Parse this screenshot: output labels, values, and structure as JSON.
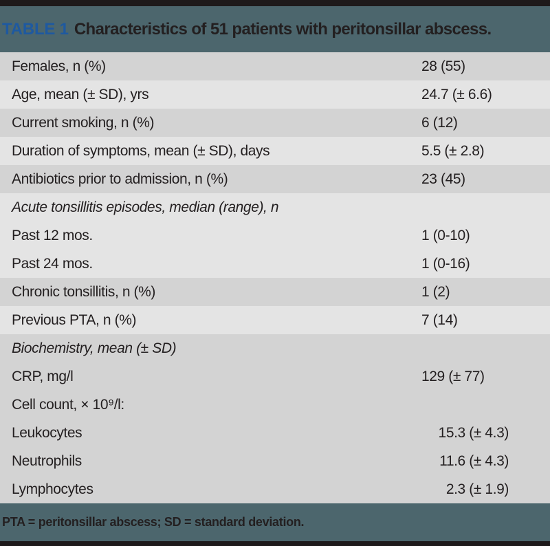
{
  "header": {
    "table_label": "TABLE 1",
    "table_title": "Characteristics of 51 patients with peritonsillar abscess."
  },
  "rows": [
    {
      "label": "Females, n (%)",
      "value": "28 (55)",
      "shade": "dark",
      "italic": false,
      "value_align": "left"
    },
    {
      "label": "Age, mean (± SD), yrs",
      "value": "24.7 (± 6.6)",
      "shade": "light",
      "italic": false,
      "value_align": "left"
    },
    {
      "label": "Current smoking, n (%)",
      "value": "6 (12)",
      "shade": "dark",
      "italic": false,
      "value_align": "left"
    },
    {
      "label": "Duration of symptoms, mean (± SD), days",
      "value": "5.5 (± 2.8)",
      "shade": "light",
      "italic": false,
      "value_align": "left"
    },
    {
      "label": "Antibiotics prior to admission, n (%)",
      "value": "23 (45)",
      "shade": "dark",
      "italic": false,
      "value_align": "left"
    },
    {
      "label": "Acute tonsillitis episodes, median (range), n",
      "value": "",
      "shade": "light",
      "italic": true,
      "value_align": "left"
    },
    {
      "label": "Past 12 mos.",
      "value": "1 (0-10)",
      "shade": "light",
      "italic": false,
      "value_align": "left"
    },
    {
      "label": "Past 24 mos.",
      "value": "1 (0-16)",
      "shade": "light",
      "italic": false,
      "value_align": "left"
    },
    {
      "label": "Chronic tonsillitis, n (%)",
      "value": "1 (2)",
      "shade": "dark",
      "italic": false,
      "value_align": "left"
    },
    {
      "label": "Previous PTA, n (%)",
      "value": "7 (14)",
      "shade": "light",
      "italic": false,
      "value_align": "left"
    },
    {
      "label": "Biochemistry, mean (± SD)",
      "value": "",
      "shade": "dark",
      "italic": true,
      "value_align": "left"
    },
    {
      "label": "CRP, mg/l",
      "value": "129 (± 77)",
      "shade": "dark",
      "italic": false,
      "value_align": "left"
    },
    {
      "label": "Cell count, × 10⁹/l:",
      "value": "",
      "shade": "dark",
      "italic": false,
      "value_align": "left"
    },
    {
      "label": "Leukocytes",
      "value": "15.3 (± 4.3)",
      "shade": "dark",
      "italic": false,
      "value_align": "right"
    },
    {
      "label": "Neutrophils",
      "value": "11.6 (± 4.3)",
      "shade": "dark",
      "italic": false,
      "value_align": "right"
    },
    {
      "label": "Lymphocytes",
      "value": "2.3 (± 1.9)",
      "shade": "dark",
      "italic": false,
      "value_align": "right"
    }
  ],
  "footer": {
    "note": "PTA = peritonsillar abscess; SD = standard deviation."
  },
  "colors": {
    "bar": "#1e1a1b",
    "band": "#4c666d",
    "stripe_dark": "#d3d3d3",
    "stripe_light": "#e4e4e4",
    "text": "#231f20",
    "table_label_blue": "#1e59a0"
  }
}
